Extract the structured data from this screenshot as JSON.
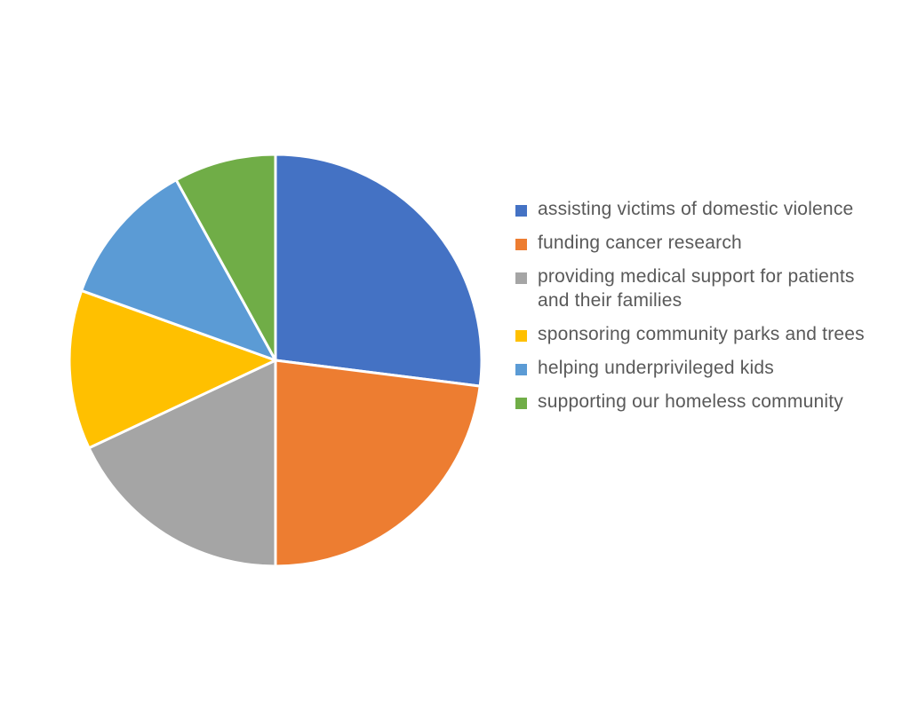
{
  "chart_data": {
    "type": "pie",
    "title": "",
    "start_angle_deg": 0,
    "direction": "clockwise",
    "legend_position": "right",
    "slices": [
      {
        "label": "assisting victims of domestic violence",
        "value": 27,
        "color": "#4472C4"
      },
      {
        "label": "funding cancer research",
        "value": 23,
        "color": "#ED7D31"
      },
      {
        "label": "providing medical support for patients and their families",
        "value": 18,
        "color": "#A5A5A5"
      },
      {
        "label": "sponsoring community parks and trees",
        "value": 12.5,
        "color": "#FFC000"
      },
      {
        "label": "helping underprivileged kids",
        "value": 11.5,
        "color": "#5B9BD5"
      },
      {
        "label": "supporting our homeless community",
        "value": 8,
        "color": "#70AD47"
      }
    ]
  }
}
